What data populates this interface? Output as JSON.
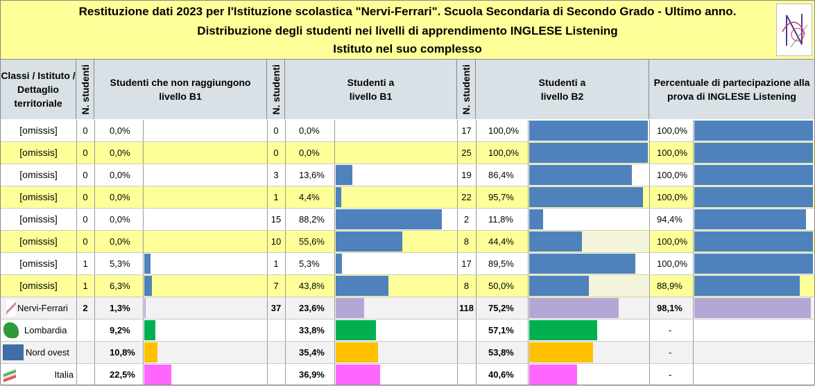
{
  "title": {
    "line1": "Restituzione dati 2023 per l'Istituzione scolastica \"Nervi-Ferrari\". Scuola Secondaria di Secondo Grado - Ultimo anno.",
    "line2": "Distribuzione degli studenti nei livelli di apprendimento INGLESE Listening",
    "line3": "Istituto nel suo complesso"
  },
  "headers": {
    "classi": "Classi / Istituto / Dettaglio territoriale",
    "n_studenti": "N. studenti",
    "below_b1": "Studenti che non raggiungono livello B1",
    "b1": "Studenti a livello B1",
    "b2": "Studenti a livello B2",
    "participation": "Percentuale di partecipazione alla prova di INGLESE Listening"
  },
  "colors": {
    "title_bg": "#ffff99",
    "header_bg": "#d9e1e6",
    "class_bar": "#4f81bd",
    "nervi_bar": "#b4a7d6",
    "lombardia": "#00b050",
    "nord_ovest": "#ffc000",
    "italia": "#ff66ff",
    "band_yellow": "#ffff99"
  },
  "chart_data": {
    "type": "table",
    "columns": [
      "Classi / Istituto / Dettaglio territoriale",
      "N. studenti",
      "Studenti che non raggiungono livello B1 (%)",
      "N. studenti",
      "Studenti a livello B1 (%)",
      "N. studenti",
      "Studenti a livello B2 (%)",
      "Percentuale di partecipazione alla prova di INGLESE Listening (%)"
    ],
    "rows": [
      {
        "label": "[omissis]",
        "kind": "class",
        "below_n": "0",
        "below_pct": "0,0%",
        "below_val": 0,
        "b1_n": "0",
        "b1_pct": "0,0%",
        "b1_val": 0,
        "b2_n": "17",
        "b2_pct": "100,0%",
        "b2_val": 100,
        "part_pct": "100,0%",
        "part_val": 100
      },
      {
        "label": "[omissis]",
        "kind": "class",
        "below_n": "0",
        "below_pct": "0,0%",
        "below_val": 0,
        "b1_n": "0",
        "b1_pct": "0,0%",
        "b1_val": 0,
        "b2_n": "25",
        "b2_pct": "100,0%",
        "b2_val": 100,
        "part_pct": "100,0%",
        "part_val": 100
      },
      {
        "label": "[omissis]",
        "kind": "class",
        "below_n": "0",
        "below_pct": "0,0%",
        "below_val": 0,
        "b1_n": "3",
        "b1_pct": "13,6%",
        "b1_val": 13.6,
        "b2_n": "19",
        "b2_pct": "86,4%",
        "b2_val": 86.4,
        "part_pct": "100,0%",
        "part_val": 100
      },
      {
        "label": "[omissis]",
        "kind": "class",
        "below_n": "0",
        "below_pct": "0,0%",
        "below_val": 0,
        "b1_n": "1",
        "b1_pct": "4,4%",
        "b1_val": 4.4,
        "b2_n": "22",
        "b2_pct": "95,7%",
        "b2_val": 95.7,
        "part_pct": "100,0%",
        "part_val": 100
      },
      {
        "label": "[omissis]",
        "kind": "class",
        "below_n": "0",
        "below_pct": "0,0%",
        "below_val": 0,
        "b1_n": "15",
        "b1_pct": "88,2%",
        "b1_val": 88.2,
        "b2_n": "2",
        "b2_pct": "11,8%",
        "b2_val": 11.8,
        "part_pct": "94,4%",
        "part_val": 94.4
      },
      {
        "label": "[omissis]",
        "kind": "class",
        "below_n": "0",
        "below_pct": "0,0%",
        "below_val": 0,
        "b1_n": "10",
        "b1_pct": "55,6%",
        "b1_val": 55.6,
        "b2_n": "8",
        "b2_pct": "44,4%",
        "b2_val": 44.4,
        "part_pct": "100,0%",
        "part_val": 100
      },
      {
        "label": "[omissis]",
        "kind": "class",
        "below_n": "1",
        "below_pct": "5,3%",
        "below_val": 5.3,
        "b1_n": "1",
        "b1_pct": "5,3%",
        "b1_val": 5.3,
        "b2_n": "17",
        "b2_pct": "89,5%",
        "b2_val": 89.5,
        "part_pct": "100,0%",
        "part_val": 100
      },
      {
        "label": "[omissis]",
        "kind": "class",
        "below_n": "1",
        "below_pct": "6,3%",
        "below_val": 6.3,
        "b1_n": "7",
        "b1_pct": "43,8%",
        "b1_val": 43.8,
        "b2_n": "8",
        "b2_pct": "50,0%",
        "b2_val": 50,
        "part_pct": "88,9%",
        "part_val": 88.9
      },
      {
        "label": "Nervi-Ferrari",
        "kind": "school",
        "below_n": "2",
        "below_pct": "1,3%",
        "below_val": 1.3,
        "b1_n": "37",
        "b1_pct": "23,6%",
        "b1_val": 23.6,
        "b2_n": "118",
        "b2_pct": "75,2%",
        "b2_val": 75.2,
        "part_pct": "98,1%",
        "part_val": 98.1
      },
      {
        "label": "Lombardia",
        "kind": "lombardia",
        "below_n": "",
        "below_pct": "9,2%",
        "below_val": 9.2,
        "b1_n": "",
        "b1_pct": "33,8%",
        "b1_val": 33.8,
        "b2_n": "",
        "b2_pct": "57,1%",
        "b2_val": 57.1,
        "part_pct": "-",
        "part_val": null
      },
      {
        "label": "Nord ovest",
        "kind": "nordovest",
        "below_n": "",
        "below_pct": "10,8%",
        "below_val": 10.8,
        "b1_n": "",
        "b1_pct": "35,4%",
        "b1_val": 35.4,
        "b2_n": "",
        "b2_pct": "53,8%",
        "b2_val": 53.8,
        "part_pct": "-",
        "part_val": null
      },
      {
        "label": "Italia",
        "kind": "italia",
        "below_n": "",
        "below_pct": "22,5%",
        "below_val": 22.5,
        "b1_n": "",
        "b1_pct": "36,9%",
        "b1_val": 36.9,
        "b2_n": "",
        "b2_pct": "40,6%",
        "b2_val": 40.6,
        "part_pct": "-",
        "part_val": null
      }
    ]
  }
}
